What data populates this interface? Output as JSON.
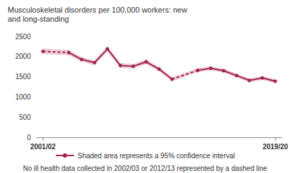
{
  "chart_data": {
    "type": "line",
    "title": "Musculoskeletal disorders per 100,000 workers: new and long-standing",
    "categories": [
      "2001/02",
      null,
      null,
      null,
      null,
      null,
      null,
      null,
      null,
      null,
      null,
      null,
      null,
      null,
      null,
      null,
      null,
      null,
      "2019/20"
    ],
    "series": [
      {
        "name": "Shaded area represents a 95% confidence interval",
        "color": "#a3214f",
        "values": [
          2130,
          null,
          2100,
          1930,
          1850,
          2190,
          1780,
          1760,
          1870,
          1690,
          1440,
          null,
          1660,
          1710,
          1650,
          1530,
          1410,
          1470,
          1390
        ],
        "lower": [
          2060,
          null,
          2030,
          1870,
          1790,
          2120,
          1720,
          1700,
          1810,
          1630,
          1390,
          null,
          1610,
          1660,
          1600,
          1480,
          1360,
          1420,
          1340
        ],
        "upper": [
          2200,
          null,
          2170,
          1990,
          1910,
          2260,
          1840,
          1820,
          1930,
          1750,
          1490,
          null,
          1710,
          1760,
          1700,
          1580,
          1460,
          1520,
          1440
        ],
        "marker": "circle",
        "line_style": "solid"
      }
    ],
    "ylim": [
      0,
      2500
    ],
    "yticks": [
      0,
      500,
      1000,
      1500,
      2000,
      2500
    ],
    "grid": false,
    "legend": "bottom",
    "annotations": [
      "No ill health data collected in 2002/03 or 2012/13 represented by a dashed line"
    ]
  }
}
